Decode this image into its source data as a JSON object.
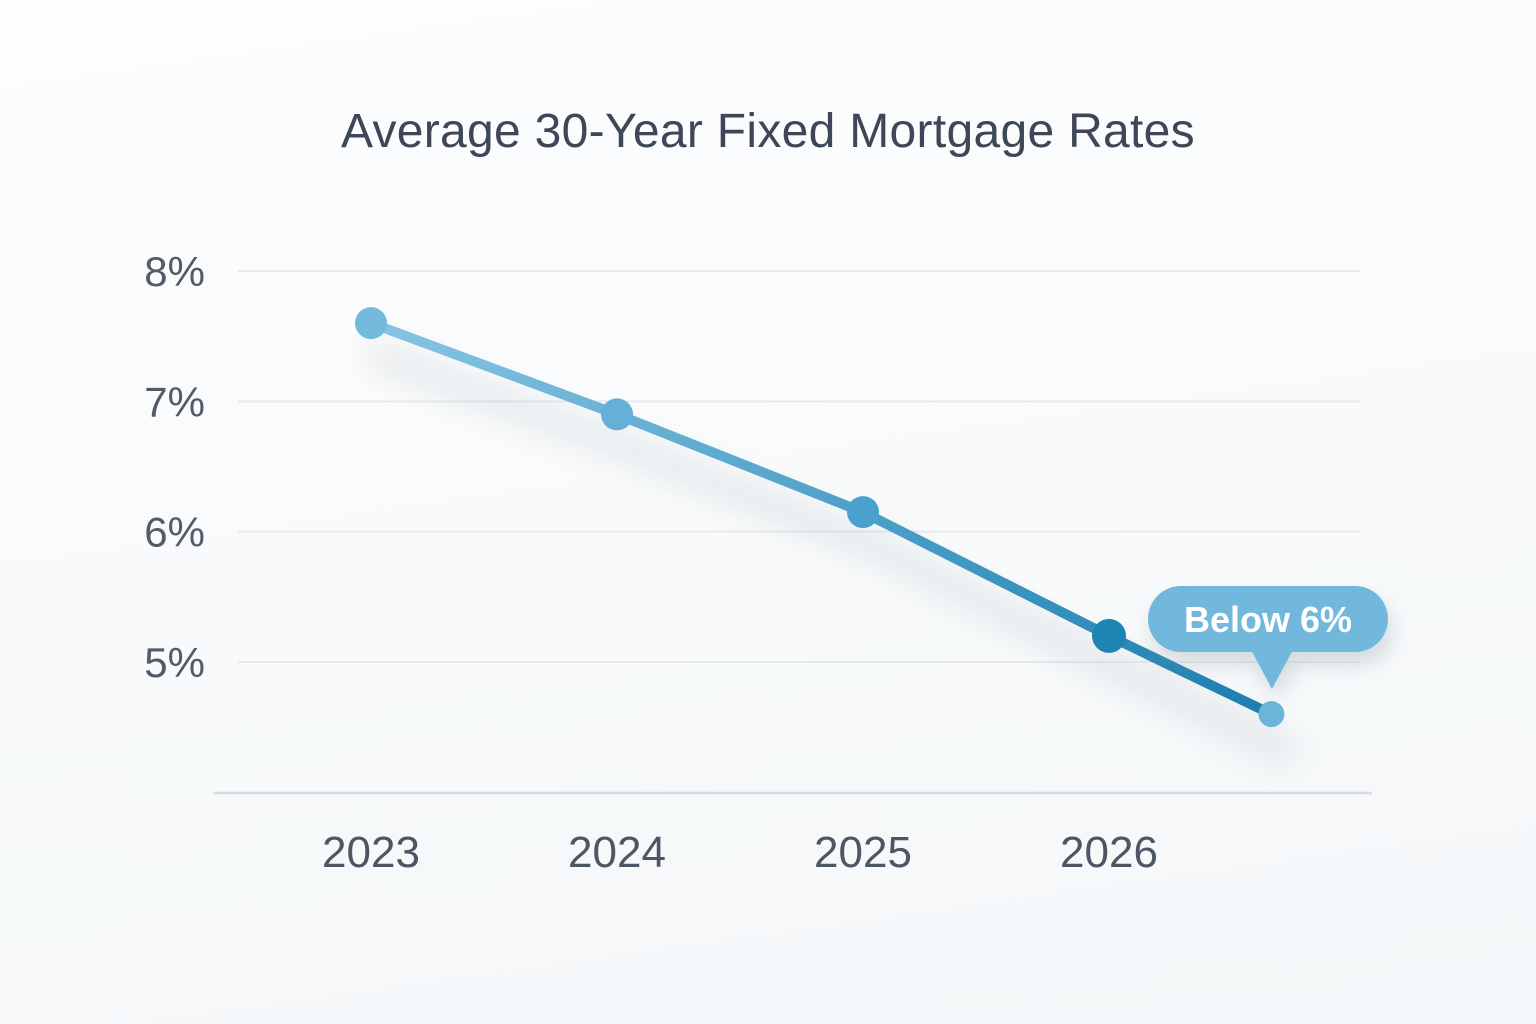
{
  "chart_data": {
    "type": "line",
    "title": "Average 30-Year Fixed Mortgage Rates",
    "categories": [
      "2023",
      "2024",
      "2025",
      "2026"
    ],
    "series": [
      {
        "name": "Average 30-Year Fixed Mortgage Rate",
        "points": [
          {
            "label": "2023",
            "x": 0,
            "value": 7.6,
            "color": "#74badd",
            "radius": 16
          },
          {
            "label": "2024",
            "x": 1,
            "value": 6.9,
            "color": "#66b0d8",
            "radius": 16
          },
          {
            "label": "2025",
            "x": 2,
            "value": 6.15,
            "color": "#4aa1cd",
            "radius": 16
          },
          {
            "label": "2026",
            "x": 3,
            "value": 5.2,
            "color": "#1e84b4",
            "radius": 17
          },
          {
            "label": "",
            "x": 3.66,
            "value": 4.6,
            "color": "#6cb4da",
            "radius": 13
          }
        ]
      }
    ],
    "y_axis": {
      "ticks": [
        {
          "value": 8,
          "label": "8%"
        },
        {
          "value": 7,
          "label": "7%"
        },
        {
          "value": 6,
          "label": "6%"
        },
        {
          "value": 5,
          "label": "5%"
        }
      ]
    },
    "x_axis": {
      "labels": [
        "2023",
        "2024",
        "2025",
        "2026"
      ]
    },
    "ylim": [
      4,
      8
    ],
    "grid": true,
    "legend": false,
    "line_gradient": {
      "start": "#87c5e3",
      "end": "#1b7fb0"
    },
    "annotation": {
      "label": "Below 6%",
      "color": "#72b8dd",
      "text_color": "#ffffff",
      "points_to_value": 4.6
    }
  },
  "colors": {
    "title": "#3d4757",
    "axis_label": "#525b69",
    "gridline": "#e7e9ec",
    "baseline": "#d8dbdf",
    "background": "#f8fafb"
  }
}
